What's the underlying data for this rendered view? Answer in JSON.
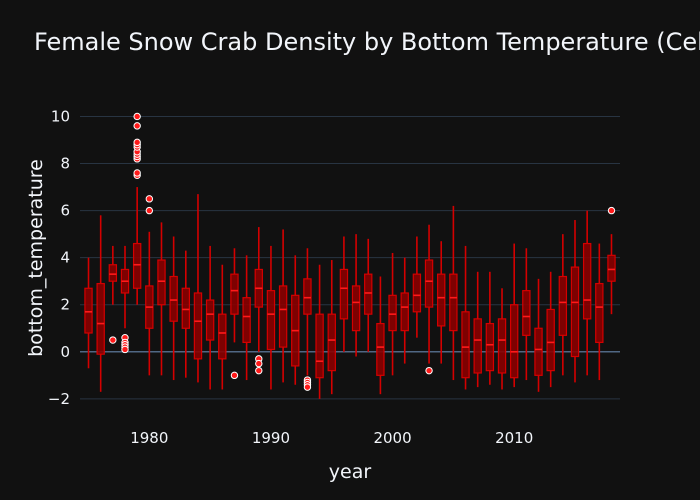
{
  "chart_data": {
    "type": "box",
    "title": "Female Snow Crab Density by Bottom Temperature (Cels",
    "xlabel": "year",
    "ylabel": "bottom_temperature",
    "xlim": [
      1974.3,
      2018.7
    ],
    "ylim": [
      -2.6,
      10.7
    ],
    "x_ticks": [
      1980,
      1990,
      2000,
      2010
    ],
    "y_ticks": [
      -2,
      0,
      2,
      4,
      6,
      8,
      10
    ],
    "grid": true,
    "colors": {
      "background": "#111111",
      "box_fill": "#8b0000",
      "box_line": "#d40000",
      "outlier": "#ff1a1a"
    },
    "boxes": [
      {
        "year": 1975,
        "min": -0.7,
        "q1": 0.8,
        "median": 1.7,
        "q3": 2.7,
        "max": 4.0,
        "outliers": []
      },
      {
        "year": 1976,
        "min": -1.7,
        "q1": -0.1,
        "median": 1.2,
        "q3": 2.9,
        "max": 5.8,
        "outliers": []
      },
      {
        "year": 1977,
        "min": 2.0,
        "q1": 3.0,
        "median": 3.3,
        "q3": 3.7,
        "max": 4.5,
        "outliers": [
          0.5
        ]
      },
      {
        "year": 1978,
        "min": 1.0,
        "q1": 2.5,
        "median": 3.0,
        "q3": 3.5,
        "max": 4.5,
        "outliers": [
          0.6,
          0.4,
          0.3,
          0.2,
          0.1
        ]
      },
      {
        "year": 1979,
        "min": 2.0,
        "q1": 2.7,
        "median": 3.7,
        "q3": 4.6,
        "max": 7.0,
        "outliers": [
          7.5,
          7.6,
          8.2,
          8.3,
          8.4,
          8.5,
          8.7,
          8.8,
          8.9,
          9.6,
          10.0
        ]
      },
      {
        "year": 1980,
        "min": -1.0,
        "q1": 1.0,
        "median": 1.9,
        "q3": 2.8,
        "max": 5.1,
        "outliers": [
          6.0,
          6.5
        ]
      },
      {
        "year": 1981,
        "min": -1.0,
        "q1": 2.0,
        "median": 3.0,
        "q3": 3.9,
        "max": 5.5,
        "outliers": []
      },
      {
        "year": 1982,
        "min": -1.2,
        "q1": 1.3,
        "median": 2.2,
        "q3": 3.2,
        "max": 4.9,
        "outliers": []
      },
      {
        "year": 1983,
        "min": -1.1,
        "q1": 1.0,
        "median": 1.8,
        "q3": 2.7,
        "max": 4.3,
        "outliers": []
      },
      {
        "year": 1984,
        "min": -1.3,
        "q1": -0.3,
        "median": 1.3,
        "q3": 2.5,
        "max": 6.7,
        "outliers": []
      },
      {
        "year": 1985,
        "min": -1.6,
        "q1": 0.5,
        "median": 1.6,
        "q3": 2.2,
        "max": 4.5,
        "outliers": []
      },
      {
        "year": 1986,
        "min": -1.6,
        "q1": -0.3,
        "median": 0.8,
        "q3": 1.6,
        "max": 3.7,
        "outliers": []
      },
      {
        "year": 1987,
        "min": 0.4,
        "q1": 1.6,
        "median": 2.6,
        "q3": 3.3,
        "max": 4.4,
        "outliers": [
          -1.0
        ]
      },
      {
        "year": 1988,
        "min": -1.2,
        "q1": 0.4,
        "median": 1.5,
        "q3": 2.3,
        "max": 4.1,
        "outliers": []
      },
      {
        "year": 1989,
        "min": 0.0,
        "q1": 1.9,
        "median": 2.7,
        "q3": 3.5,
        "max": 5.3,
        "outliers": [
          -0.3,
          -0.5,
          -0.8
        ]
      },
      {
        "year": 1990,
        "min": -1.6,
        "q1": 0.1,
        "median": 1.6,
        "q3": 2.6,
        "max": 4.5,
        "outliers": []
      },
      {
        "year": 1991,
        "min": -1.3,
        "q1": 0.2,
        "median": 1.8,
        "q3": 2.8,
        "max": 5.2,
        "outliers": []
      },
      {
        "year": 1992,
        "min": -1.4,
        "q1": -0.6,
        "median": 0.9,
        "q3": 2.4,
        "max": 4.1,
        "outliers": []
      },
      {
        "year": 1993,
        "min": -1.0,
        "q1": 1.6,
        "median": 2.3,
        "q3": 3.1,
        "max": 4.4,
        "outliers": [
          -1.2,
          -1.3,
          -1.4,
          -1.5
        ]
      },
      {
        "year": 1994,
        "min": -2.0,
        "q1": -1.1,
        "median": -0.4,
        "q3": 1.6,
        "max": 3.7,
        "outliers": []
      },
      {
        "year": 1995,
        "min": -1.8,
        "q1": -0.8,
        "median": 0.5,
        "q3": 1.6,
        "max": 3.9,
        "outliers": []
      },
      {
        "year": 1996,
        "min": 0.0,
        "q1": 1.4,
        "median": 2.7,
        "q3": 3.5,
        "max": 4.9,
        "outliers": []
      },
      {
        "year": 1997,
        "min": -0.2,
        "q1": 0.9,
        "median": 2.1,
        "q3": 2.8,
        "max": 5.0,
        "outliers": []
      },
      {
        "year": 1998,
        "min": 0.0,
        "q1": 1.6,
        "median": 2.5,
        "q3": 3.3,
        "max": 4.8,
        "outliers": []
      },
      {
        "year": 1999,
        "min": -1.8,
        "q1": -1.0,
        "median": 0.2,
        "q3": 1.2,
        "max": 3.2,
        "outliers": []
      },
      {
        "year": 2000,
        "min": -1.0,
        "q1": 0.9,
        "median": 1.6,
        "q3": 2.4,
        "max": 4.2,
        "outliers": []
      },
      {
        "year": 2001,
        "min": -0.5,
        "q1": 0.9,
        "median": 1.9,
        "q3": 2.5,
        "max": 4.0,
        "outliers": []
      },
      {
        "year": 2002,
        "min": 0.6,
        "q1": 1.7,
        "median": 2.4,
        "q3": 3.3,
        "max": 4.9,
        "outliers": []
      },
      {
        "year": 2003,
        "min": -0.5,
        "q1": 1.9,
        "median": 3.0,
        "q3": 3.9,
        "max": 5.4,
        "outliers": [
          -0.8
        ]
      },
      {
        "year": 2004,
        "min": -0.5,
        "q1": 1.1,
        "median": 2.3,
        "q3": 3.3,
        "max": 4.7,
        "outliers": []
      },
      {
        "year": 2005,
        "min": -1.2,
        "q1": 0.9,
        "median": 2.3,
        "q3": 3.3,
        "max": 6.2,
        "outliers": []
      },
      {
        "year": 2006,
        "min": -1.6,
        "q1": -1.1,
        "median": 0.2,
        "q3": 1.7,
        "max": 4.5,
        "outliers": []
      },
      {
        "year": 2007,
        "min": -1.5,
        "q1": -0.9,
        "median": 0.5,
        "q3": 1.4,
        "max": 3.4,
        "outliers": []
      },
      {
        "year": 2008,
        "min": -1.4,
        "q1": -0.8,
        "median": 0.3,
        "q3": 1.2,
        "max": 3.4,
        "outliers": []
      },
      {
        "year": 2009,
        "min": -1.6,
        "q1": -0.9,
        "median": 0.5,
        "q3": 1.4,
        "max": 2.7,
        "outliers": []
      },
      {
        "year": 2010,
        "min": -1.5,
        "q1": -1.1,
        "median": 0.0,
        "q3": 2.0,
        "max": 4.6,
        "outliers": []
      },
      {
        "year": 2011,
        "min": -1.2,
        "q1": 0.7,
        "median": 1.5,
        "q3": 2.6,
        "max": 4.4,
        "outliers": []
      },
      {
        "year": 2012,
        "min": -1.7,
        "q1": -1.0,
        "median": 0.1,
        "q3": 1.0,
        "max": 3.1,
        "outliers": []
      },
      {
        "year": 2013,
        "min": -1.5,
        "q1": -0.8,
        "median": 0.4,
        "q3": 1.8,
        "max": 3.4,
        "outliers": []
      },
      {
        "year": 2014,
        "min": -1.0,
        "q1": 0.7,
        "median": 2.1,
        "q3": 3.2,
        "max": 5.0,
        "outliers": []
      },
      {
        "year": 2015,
        "min": -1.3,
        "q1": -0.2,
        "median": 2.1,
        "q3": 3.6,
        "max": 5.6,
        "outliers": []
      },
      {
        "year": 2016,
        "min": -1.0,
        "q1": 1.4,
        "median": 2.2,
        "q3": 4.6,
        "max": 6.0,
        "outliers": []
      },
      {
        "year": 2017,
        "min": -1.2,
        "q1": 0.4,
        "median": 1.9,
        "q3": 2.9,
        "max": 4.6,
        "outliers": []
      },
      {
        "year": 2018,
        "min": 1.6,
        "q1": 3.0,
        "median": 3.5,
        "q3": 4.1,
        "max": 5.0,
        "outliers": [
          6.0
        ]
      }
    ]
  }
}
